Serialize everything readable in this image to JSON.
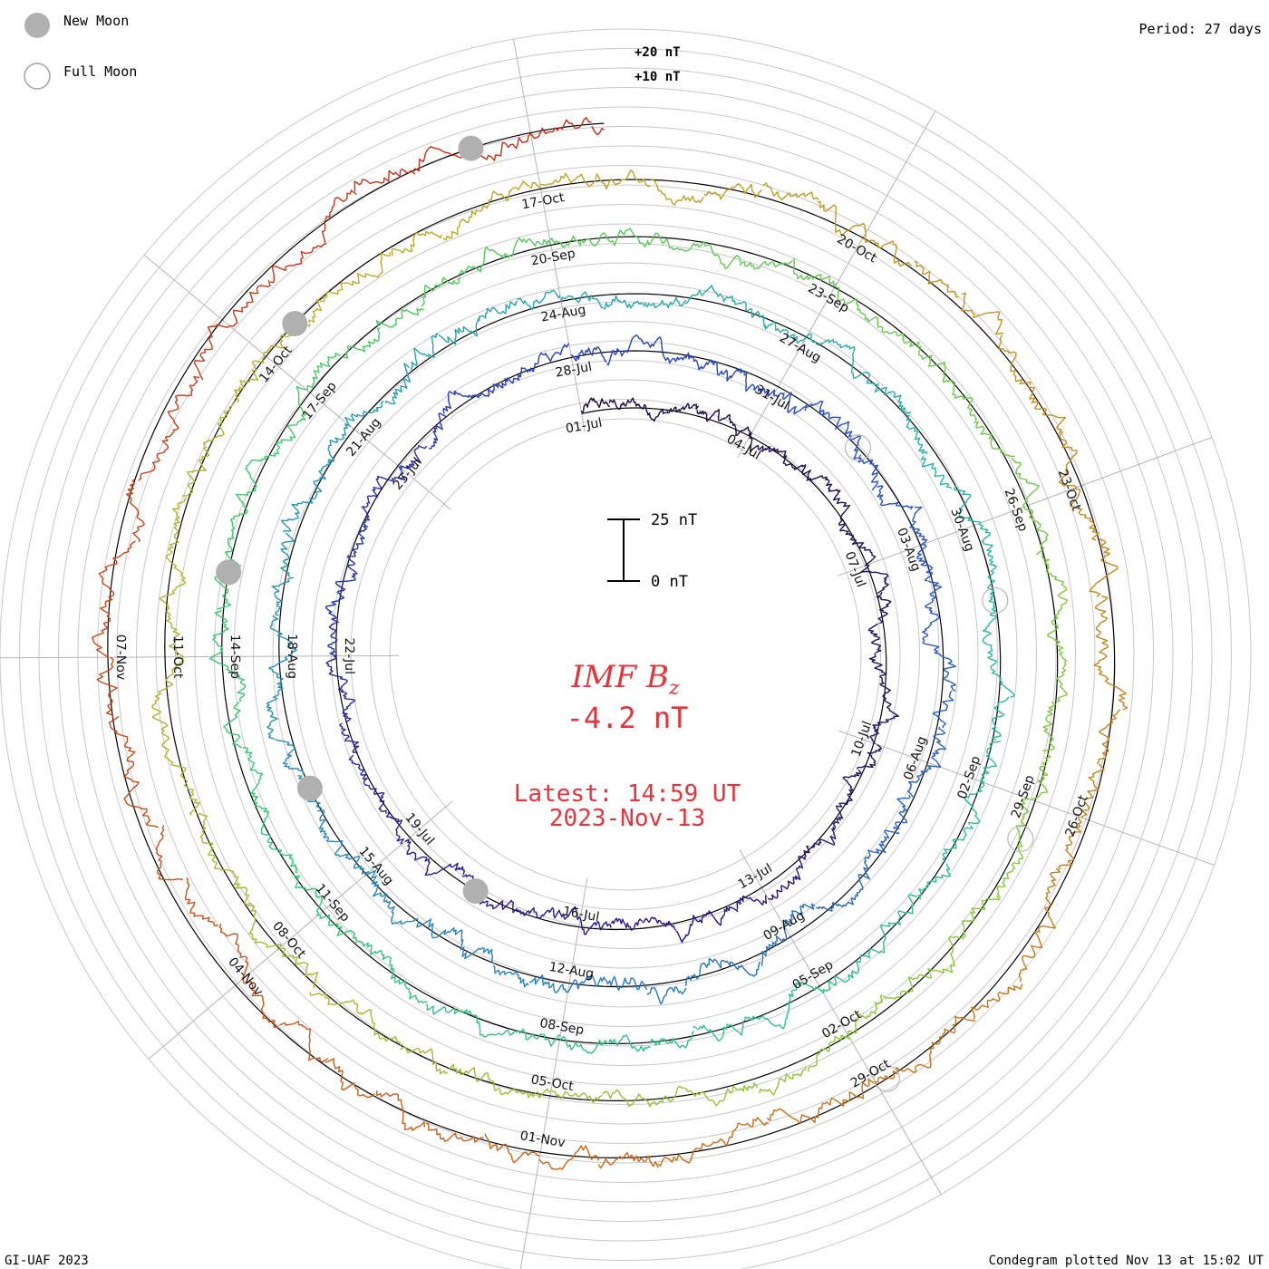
{
  "legend": {
    "new_moon": "New Moon",
    "full_moon": "Full Moon"
  },
  "period_label": "Period: 27 days",
  "footer_left": "GI-UAF 2023",
  "footer_right": "Condegram plotted Nov 13 at 15:02 UT",
  "center": {
    "quantity_main": "IMF B",
    "quantity_sub": "z",
    "value": "-4.2 nT",
    "latest": "Latest: 14:59 UT",
    "date": "2023-Nov-13"
  },
  "scale_bar": {
    "top_label": "25 nT",
    "bottom_label": "0 nT"
  },
  "chart_data": {
    "type": "line",
    "subtype": "spiral condegram",
    "title": "IMF Bz",
    "units": "nT",
    "period_days": 27,
    "start_date": "2023-Jul-01",
    "end_date": "2023-Nov-13",
    "ring_labels": [
      "+20 nT",
      "+10 nT"
    ],
    "latest_value": -4.2,
    "latest_time": "14:59 UT",
    "date_ticks": [
      "01-Jul",
      "04-Jul",
      "07-Jul",
      "10-Jul",
      "13-Jul",
      "16-Jul",
      "19-Jul",
      "22-Jul",
      "25-Jul",
      "28-Jul",
      "31-Jul",
      "03-Aug",
      "06-Aug",
      "09-Aug",
      "12-Aug",
      "15-Aug",
      "18-Aug",
      "21-Aug",
      "24-Aug",
      "27-Aug",
      "30-Aug",
      "02-Sep",
      "05-Sep",
      "08-Sep",
      "11-Sep",
      "14-Sep",
      "17-Sep",
      "20-Sep",
      "23-Sep",
      "26-Sep",
      "29-Sep",
      "02-Oct",
      "05-Oct",
      "08-Oct",
      "11-Oct",
      "14-Oct",
      "17-Oct",
      "20-Oct",
      "23-Oct",
      "26-Oct",
      "29-Oct",
      "01-Nov",
      "04-Nov",
      "07-Nov"
    ],
    "color_stops": [
      "#1a0a3a",
      "#2a1a8a",
      "#2a4ac8",
      "#2a8ab8",
      "#2ab8a0",
      "#3ac870",
      "#8ac83a",
      "#b8b02a",
      "#c8701a",
      "#c8281a"
    ],
    "moon_events": [
      {
        "type": "new",
        "day": 16.7
      },
      {
        "type": "full",
        "day": 31.4
      },
      {
        "type": "new",
        "day": 46.3
      },
      {
        "type": "full",
        "day": 60.9
      },
      {
        "type": "new",
        "day": 75.9
      },
      {
        "type": "full",
        "day": 90.4
      },
      {
        "type": "new",
        "day": 105.4
      },
      {
        "type": "full",
        "day": 119.9
      },
      {
        "type": "new",
        "day": 134.5
      }
    ],
    "bz_series": [
      {
        "day_start": 0,
        "day_end": 27,
        "mean": 0.4,
        "variability": 3.2
      },
      {
        "day_start": 27,
        "day_end": 54,
        "mean": -0.3,
        "variability": 3.8
      },
      {
        "day_start": 54,
        "day_end": 81,
        "mean": 0.2,
        "variability": 3.5
      },
      {
        "day_start": 81,
        "day_end": 108,
        "mean": 0.1,
        "variability": 3.6
      },
      {
        "day_start": 108,
        "day_end": 135.6,
        "mean": -0.2,
        "variability": 4.1
      }
    ]
  }
}
